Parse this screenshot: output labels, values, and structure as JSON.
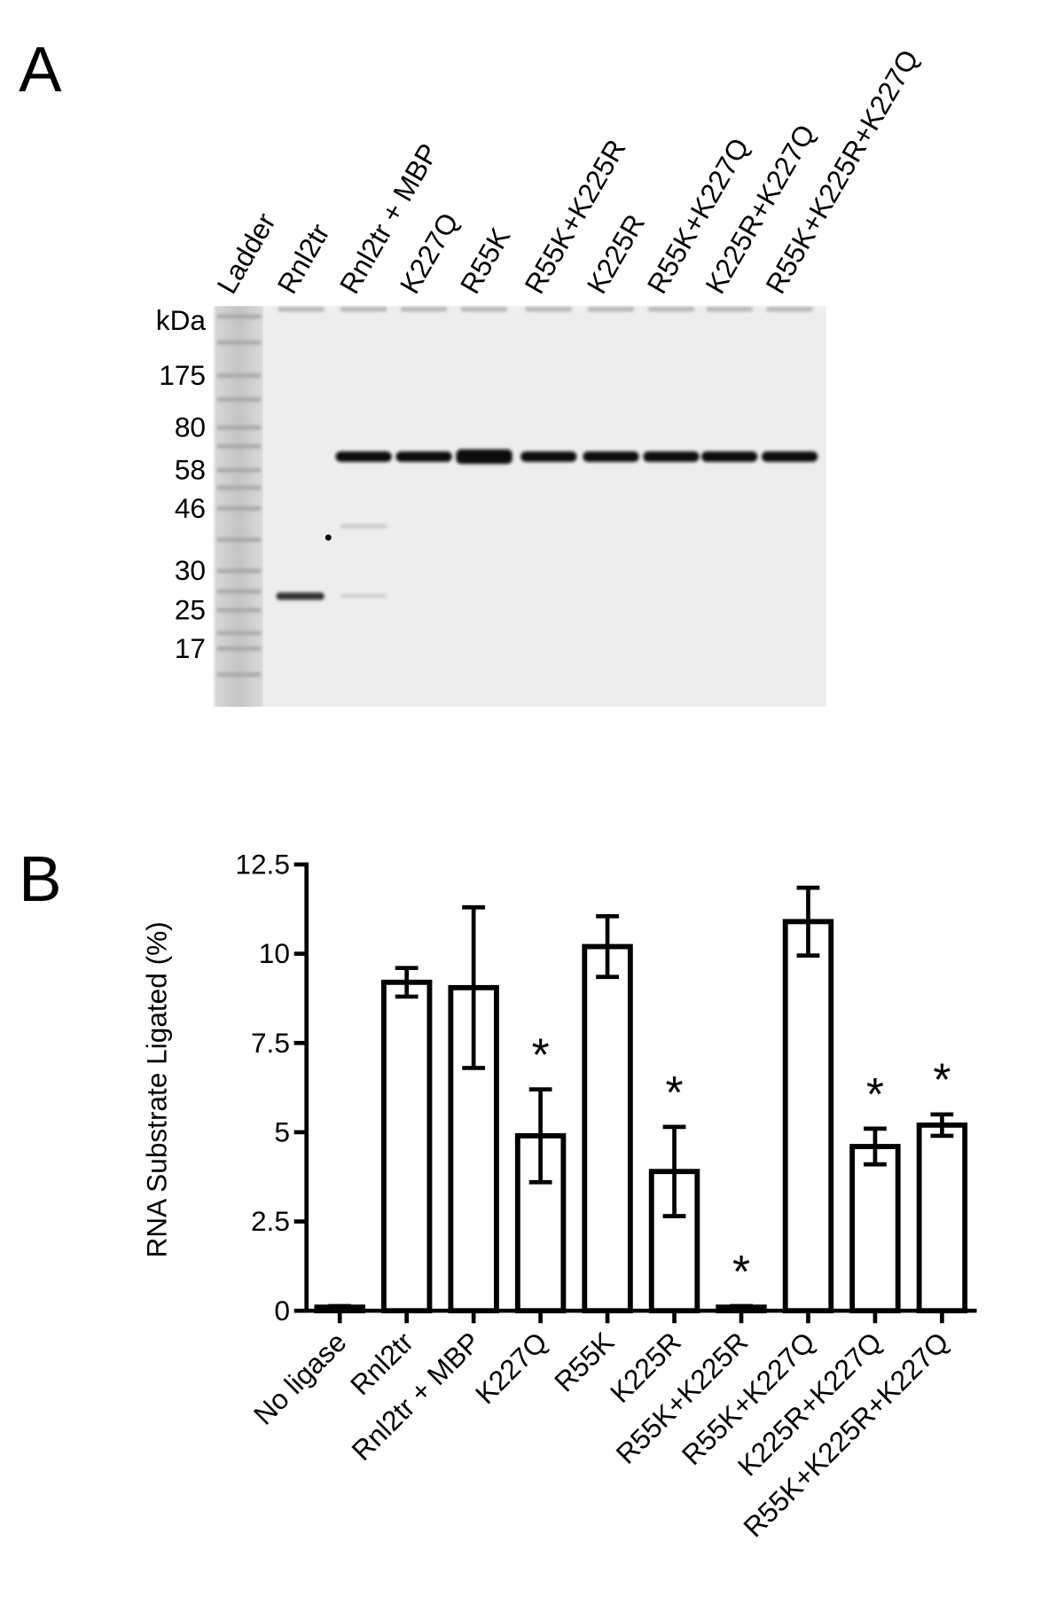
{
  "gel": {
    "panel_label": "A",
    "lanes": [
      "Ladder",
      "Rnl2tr",
      "Rnl2tr + MBP",
      "K227Q",
      "R55K",
      "R55K+K225R",
      "K225R",
      "R55K+K227Q",
      "K225R+K227Q",
      "R55K+K225R+K227Q"
    ],
    "unit": "kDa",
    "markers": [
      "175",
      "80",
      "58",
      "46",
      "30",
      "25",
      "17"
    ]
  },
  "chart_data": {
    "type": "bar",
    "panel_label": "B",
    "ylabel": "RNA Substrate Ligated (%)",
    "categories": [
      "No ligase",
      "Rnl2tr",
      "Rnl2tr + MBP",
      "K227Q",
      "R55K",
      "K225R",
      "R55K+K225R",
      "R55K+K227Q",
      "K225R+K227Q",
      "R55K+K225R+K227Q"
    ],
    "values": [
      0.1,
      9.2,
      9.05,
      4.9,
      10.2,
      3.9,
      0.1,
      10.9,
      4.6,
      5.2
    ],
    "errors": [
      0.03,
      0.4,
      2.25,
      1.3,
      0.85,
      1.25,
      0.03,
      0.95,
      0.5,
      0.3
    ],
    "significance": [
      null,
      null,
      null,
      "*",
      null,
      "*",
      "*",
      null,
      "*",
      "*"
    ],
    "color": "#ffffff",
    "ylim": [
      0,
      12.5
    ],
    "yticks": [
      0,
      2.5,
      5,
      7.5,
      10,
      12.5
    ]
  }
}
